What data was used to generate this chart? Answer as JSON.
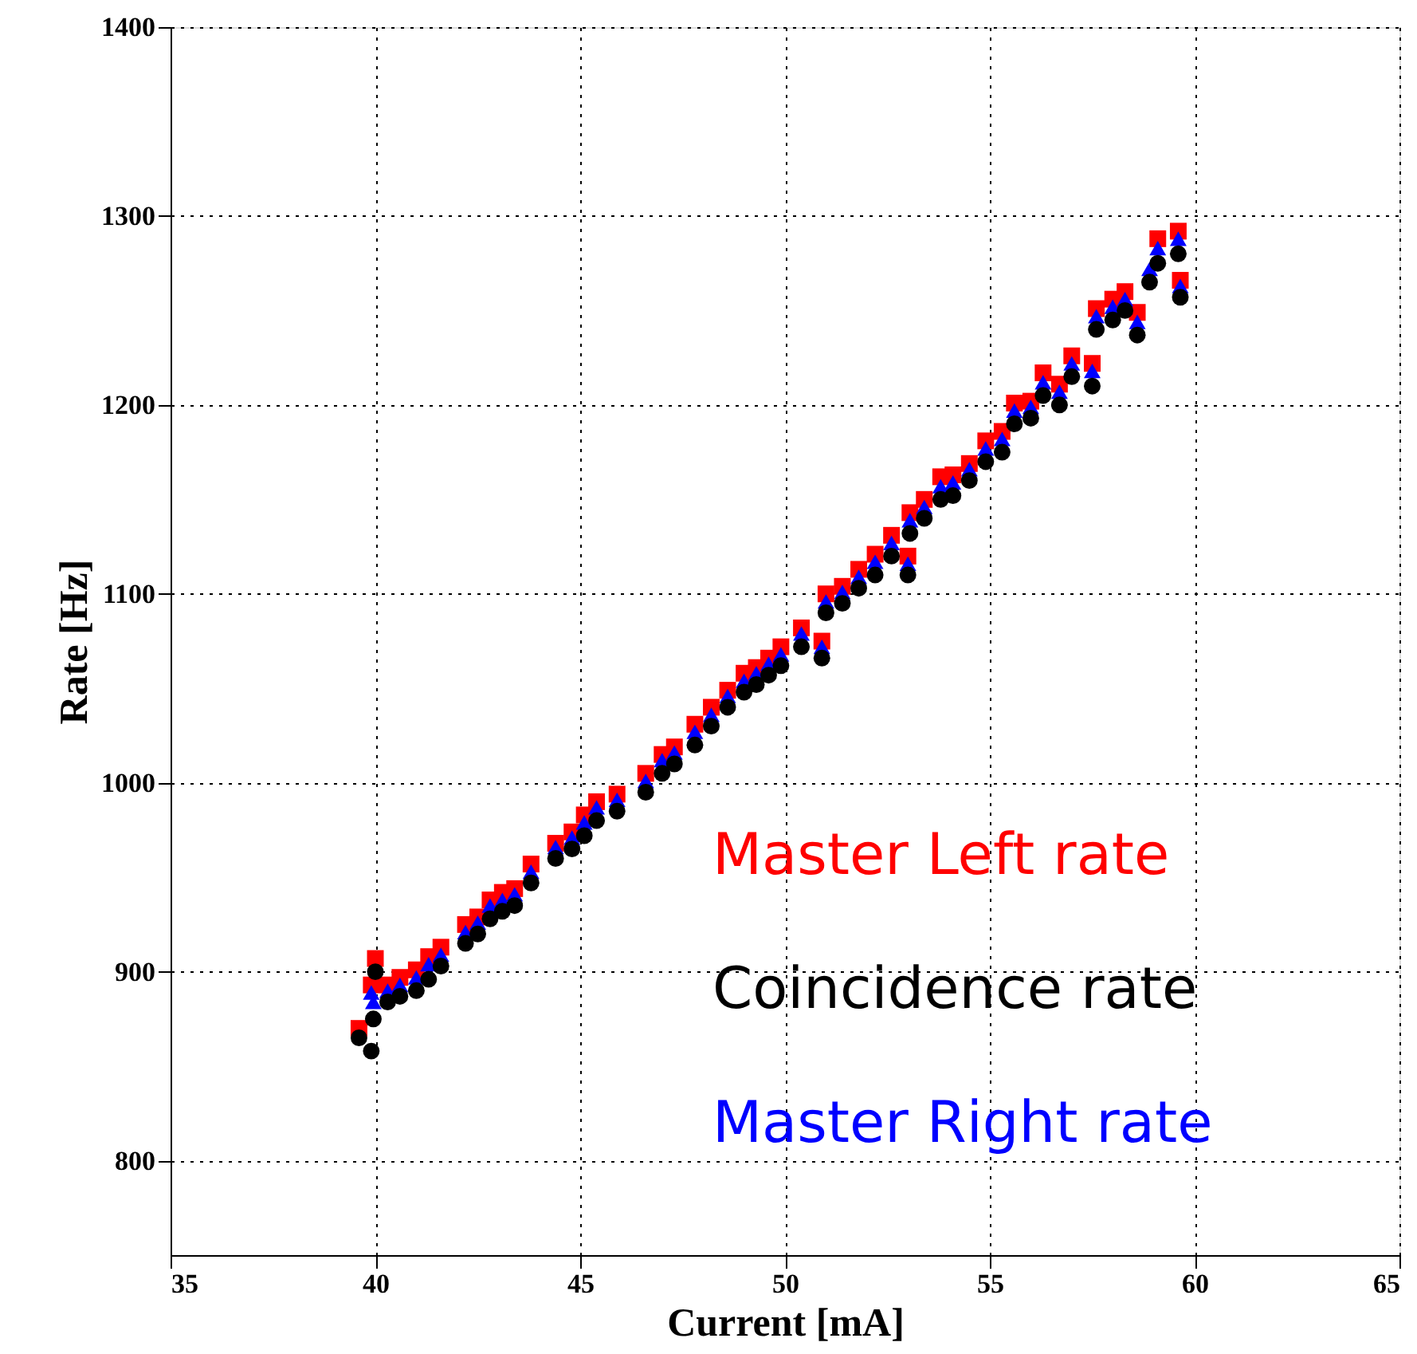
{
  "chart_data": {
    "type": "scatter",
    "xlabel": "Current [mA]",
    "ylabel": "Rate [Hz]",
    "xlim": [
      35,
      65
    ],
    "xticks": [
      35,
      40,
      45,
      50,
      55,
      60,
      65
    ],
    "ylim": [
      750,
      1400
    ],
    "yticks": [
      800,
      900,
      1000,
      1100,
      1200,
      1300,
      1400
    ],
    "grid": true,
    "legend": "bottom right",
    "x": [
      39.6,
      39.9,
      39.95,
      40.0,
      40.3,
      40.6,
      41.0,
      41.3,
      41.6,
      42.2,
      42.5,
      42.8,
      43.1,
      43.4,
      43.8,
      44.4,
      44.8,
      45.1,
      45.4,
      45.9,
      46.6,
      47.0,
      47.3,
      47.8,
      48.2,
      48.6,
      49.0,
      49.3,
      49.6,
      49.9,
      50.4,
      50.9,
      51.0,
      51.4,
      51.8,
      52.2,
      52.6,
      53.0,
      53.05,
      53.4,
      53.8,
      54.1,
      54.5,
      54.9,
      55.3,
      55.6,
      56.0,
      56.3,
      56.7,
      57.0,
      57.5,
      57.6,
      58.0,
      58.3,
      58.6,
      58.9,
      59.1,
      59.6,
      59.65
    ],
    "series": [
      {
        "name": "Master Left rate",
        "color": "#ff0000",
        "marker": "square",
        "values": [
          870,
          893,
          null,
          907,
          893,
          897,
          901,
          908,
          913,
          925,
          929,
          938,
          942,
          944,
          957,
          968,
          974,
          983,
          990,
          994,
          1005,
          1015,
          1019,
          1031,
          1040,
          1049,
          1058,
          1061,
          1066,
          1072,
          1082,
          1075,
          1100,
          1104,
          1113,
          1121,
          1131,
          1120,
          1143,
          1150,
          1162,
          1163,
          1169,
          1181,
          1186,
          1201,
          1202,
          1217,
          1211,
          1226,
          1222,
          1251,
          1256,
          1260,
          1249,
          null,
          1288,
          1292,
          1266
        ]
      },
      {
        "name": "Coincidence rate",
        "color": "#000000",
        "marker": "circle",
        "values": [
          865,
          858,
          875,
          900,
          884,
          887,
          890,
          896,
          903,
          915,
          920,
          928,
          932,
          935,
          947,
          960,
          965,
          972,
          980,
          985,
          995,
          1005,
          1010,
          1020,
          1030,
          1040,
          1048,
          1052,
          1057,
          1062,
          1072,
          1066,
          1090,
          1095,
          1103,
          1110,
          1120,
          1110,
          1132,
          1140,
          1150,
          1152,
          1160,
          1170,
          1175,
          1190,
          1193,
          1205,
          1200,
          1215,
          1210,
          1240,
          1245,
          1250,
          1237,
          1265,
          1275,
          1280,
          1257
        ]
      },
      {
        "name": "Master Right rate",
        "color": "#0000ff",
        "marker": "triangle",
        "values": [
          null,
          889,
          884,
          null,
          890,
          893,
          897,
          904,
          909,
          921,
          926,
          935,
          938,
          941,
          953,
          966,
          971,
          979,
          987,
          991,
          1001,
          1012,
          1016,
          1027,
          1036,
          1046,
          1054,
          1058,
          1063,
          1068,
          1079,
          1072,
          1096,
          1101,
          1109,
          1117,
          1127,
          1116,
          1139,
          1146,
          1157,
          1159,
          1166,
          1177,
          1182,
          1197,
          1199,
          1212,
          1207,
          1222,
          1218,
          1247,
          1252,
          1256,
          1244,
          1272,
          1283,
          1288,
          1263
        ]
      }
    ]
  }
}
